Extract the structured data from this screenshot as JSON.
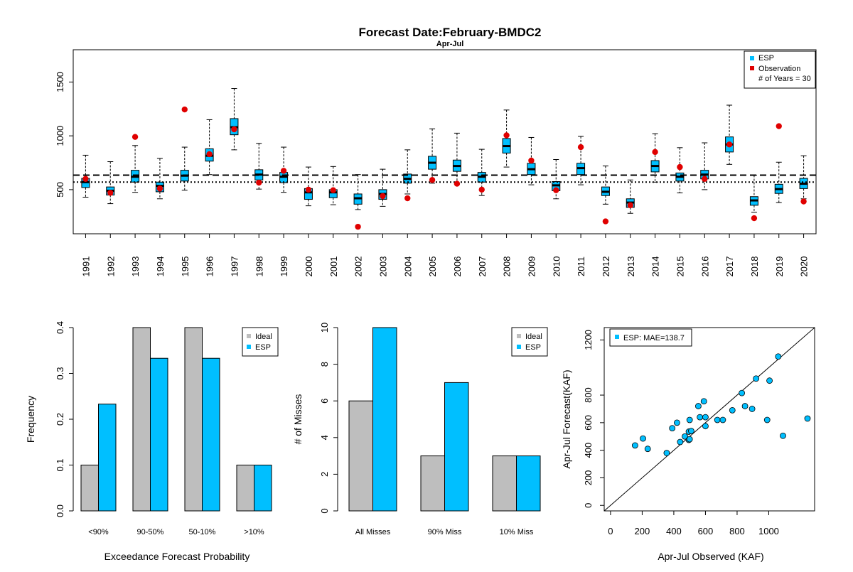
{
  "figure": {
    "title": "Forecast Date:February-BMDC2",
    "subtitle": "Apr-Jul"
  },
  "colors": {
    "esp": "#00bfff",
    "ideal": "#bebebe",
    "observation": "#e00000",
    "black": "#000000"
  },
  "chart_data": [
    {
      "type": "boxplot",
      "title": "Forecast Date:February-BMDC2",
      "subtitle": "Apr-Jul",
      "ylim": [
        90,
        1800
      ],
      "y_ticks": [
        "500",
        "1000",
        "1500"
      ],
      "grid": false,
      "legend_position": "top-right",
      "legend": {
        "esp": "ESP",
        "observation": "Observation",
        "years_note": "# of Years = 30"
      },
      "reference_lines": {
        "dashed": 635,
        "dotted": 570
      },
      "years": [
        "1991",
        "1992",
        "1993",
        "1994",
        "1995",
        "1996",
        "1997",
        "1998",
        "1999",
        "2000",
        "2001",
        "2002",
        "2003",
        "2004",
        "2005",
        "2006",
        "2007",
        "2008",
        "2009",
        "2010",
        "2011",
        "2012",
        "2013",
        "2014",
        "2015",
        "2016",
        "2017",
        "2018",
        "2019",
        "2020"
      ],
      "boxes": [
        {
          "lo": 430,
          "q1": 520,
          "med": 570,
          "q3": 605,
          "hi": 820
        },
        {
          "lo": 370,
          "q1": 450,
          "med": 490,
          "q3": 525,
          "hi": 760
        },
        {
          "lo": 475,
          "q1": 570,
          "med": 620,
          "q3": 680,
          "hi": 910
        },
        {
          "lo": 415,
          "q1": 480,
          "med": 535,
          "q3": 570,
          "hi": 790
        },
        {
          "lo": 495,
          "q1": 580,
          "med": 630,
          "q3": 680,
          "hi": 895
        },
        {
          "lo": 640,
          "q1": 765,
          "med": 815,
          "q3": 880,
          "hi": 1150
        },
        {
          "lo": 870,
          "q1": 1010,
          "med": 1080,
          "q3": 1160,
          "hi": 1440
        },
        {
          "lo": 505,
          "q1": 590,
          "med": 640,
          "q3": 685,
          "hi": 930
        },
        {
          "lo": 475,
          "q1": 565,
          "med": 620,
          "q3": 660,
          "hi": 895
        },
        {
          "lo": 350,
          "q1": 410,
          "med": 475,
          "q3": 510,
          "hi": 710
        },
        {
          "lo": 360,
          "q1": 425,
          "med": 475,
          "q3": 500,
          "hi": 715
        },
        {
          "lo": 315,
          "q1": 365,
          "med": 420,
          "q3": 460,
          "hi": 640
        },
        {
          "lo": 345,
          "q1": 410,
          "med": 460,
          "q3": 500,
          "hi": 690
        },
        {
          "lo": 460,
          "q1": 560,
          "med": 600,
          "q3": 645,
          "hi": 870
        },
        {
          "lo": 560,
          "q1": 690,
          "med": 750,
          "q3": 810,
          "hi": 1065
        },
        {
          "lo": 550,
          "q1": 670,
          "med": 720,
          "q3": 775,
          "hi": 1025
        },
        {
          "lo": 445,
          "q1": 570,
          "med": 620,
          "q3": 660,
          "hi": 875
        },
        {
          "lo": 710,
          "q1": 840,
          "med": 905,
          "q3": 975,
          "hi": 1240
        },
        {
          "lo": 545,
          "q1": 640,
          "med": 690,
          "q3": 745,
          "hi": 985
        },
        {
          "lo": 415,
          "q1": 490,
          "med": 540,
          "q3": 575,
          "hi": 780
        },
        {
          "lo": 545,
          "q1": 640,
          "med": 700,
          "q3": 745,
          "hi": 995
        },
        {
          "lo": 365,
          "q1": 445,
          "med": 480,
          "q3": 525,
          "hi": 720
        },
        {
          "lo": 280,
          "q1": 335,
          "med": 380,
          "q3": 415,
          "hi": 590
        },
        {
          "lo": 570,
          "q1": 665,
          "med": 720,
          "q3": 770,
          "hi": 1020
        },
        {
          "lo": 470,
          "q1": 580,
          "med": 620,
          "q3": 655,
          "hi": 890
        },
        {
          "lo": 500,
          "q1": 600,
          "med": 640,
          "q3": 680,
          "hi": 935
        },
        {
          "lo": 735,
          "q1": 850,
          "med": 920,
          "q3": 990,
          "hi": 1285
        },
        {
          "lo": 290,
          "q1": 355,
          "med": 400,
          "q3": 435,
          "hi": 635
        },
        {
          "lo": 380,
          "q1": 465,
          "med": 505,
          "q3": 550,
          "hi": 755
        },
        {
          "lo": 415,
          "q1": 510,
          "med": 555,
          "q3": 605,
          "hi": 815
        }
      ],
      "observations": [
        600,
        470,
        990,
        510,
        1245,
        830,
        1060,
        565,
        675,
        500,
        495,
        155,
        440,
        420,
        590,
        555,
        500,
        1005,
        770,
        495,
        895,
        205,
        355,
        850,
        710,
        600,
        920,
        235,
        1090,
        390
      ]
    },
    {
      "type": "bar",
      "xlabel": "Exceedance Forecast Probability",
      "ylabel": "Frequency",
      "ylim": [
        0,
        0.4
      ],
      "y_ticks": [
        "0.0",
        "0.1",
        "0.2",
        "0.3",
        "0.4"
      ],
      "legend_position": "top-right",
      "categories": [
        "<90%",
        "90-50%",
        "50-10%",
        ">10%"
      ],
      "series": [
        {
          "name": "Ideal",
          "values": [
            0.1,
            0.4,
            0.4,
            0.1
          ]
        },
        {
          "name": "ESP",
          "values": [
            0.233,
            0.333,
            0.333,
            0.1
          ]
        }
      ]
    },
    {
      "type": "bar",
      "xlabel": "",
      "ylabel": "# of Misses",
      "ylim": [
        0,
        10
      ],
      "y_ticks": [
        "0",
        "2",
        "4",
        "6",
        "8",
        "10"
      ],
      "legend_position": "top-right",
      "categories": [
        "All Misses",
        "90% Miss",
        "10% Miss"
      ],
      "series": [
        {
          "name": "Ideal",
          "values": [
            6,
            3,
            3
          ]
        },
        {
          "name": "ESP",
          "values": [
            10,
            7,
            3
          ]
        }
      ]
    },
    {
      "type": "scatter",
      "xlabel": "Apr-Jul Observed (KAF)",
      "ylabel": "Apr-Jul Forecast(KAF)",
      "xlim": [
        -40,
        1290
      ],
      "ylim": [
        -40,
        1290
      ],
      "x_ticks": [
        "0",
        "200",
        "400",
        "600",
        "800",
        "1000"
      ],
      "y_ticks": [
        "0",
        "200",
        "400",
        "600",
        "800",
        "1200"
      ],
      "legend_position": "top-left",
      "legend": "ESP: MAE=138.7",
      "reference_line": "1:1",
      "points": [
        {
          "x": 155,
          "y": 435
        },
        {
          "x": 205,
          "y": 485
        },
        {
          "x": 235,
          "y": 410
        },
        {
          "x": 355,
          "y": 380
        },
        {
          "x": 390,
          "y": 560
        },
        {
          "x": 420,
          "y": 600
        },
        {
          "x": 440,
          "y": 460
        },
        {
          "x": 470,
          "y": 500
        },
        {
          "x": 495,
          "y": 535
        },
        {
          "x": 495,
          "y": 475
        },
        {
          "x": 500,
          "y": 620
        },
        {
          "x": 500,
          "y": 480
        },
        {
          "x": 510,
          "y": 540
        },
        {
          "x": 555,
          "y": 720
        },
        {
          "x": 565,
          "y": 640
        },
        {
          "x": 590,
          "y": 755
        },
        {
          "x": 600,
          "y": 575
        },
        {
          "x": 600,
          "y": 640
        },
        {
          "x": 675,
          "y": 620
        },
        {
          "x": 710,
          "y": 620
        },
        {
          "x": 770,
          "y": 690
        },
        {
          "x": 830,
          "y": 815
        },
        {
          "x": 850,
          "y": 720
        },
        {
          "x": 895,
          "y": 700
        },
        {
          "x": 920,
          "y": 920
        },
        {
          "x": 990,
          "y": 620
        },
        {
          "x": 1005,
          "y": 905
        },
        {
          "x": 1060,
          "y": 1080
        },
        {
          "x": 1090,
          "y": 505
        },
        {
          "x": 1245,
          "y": 630
        }
      ]
    }
  ]
}
